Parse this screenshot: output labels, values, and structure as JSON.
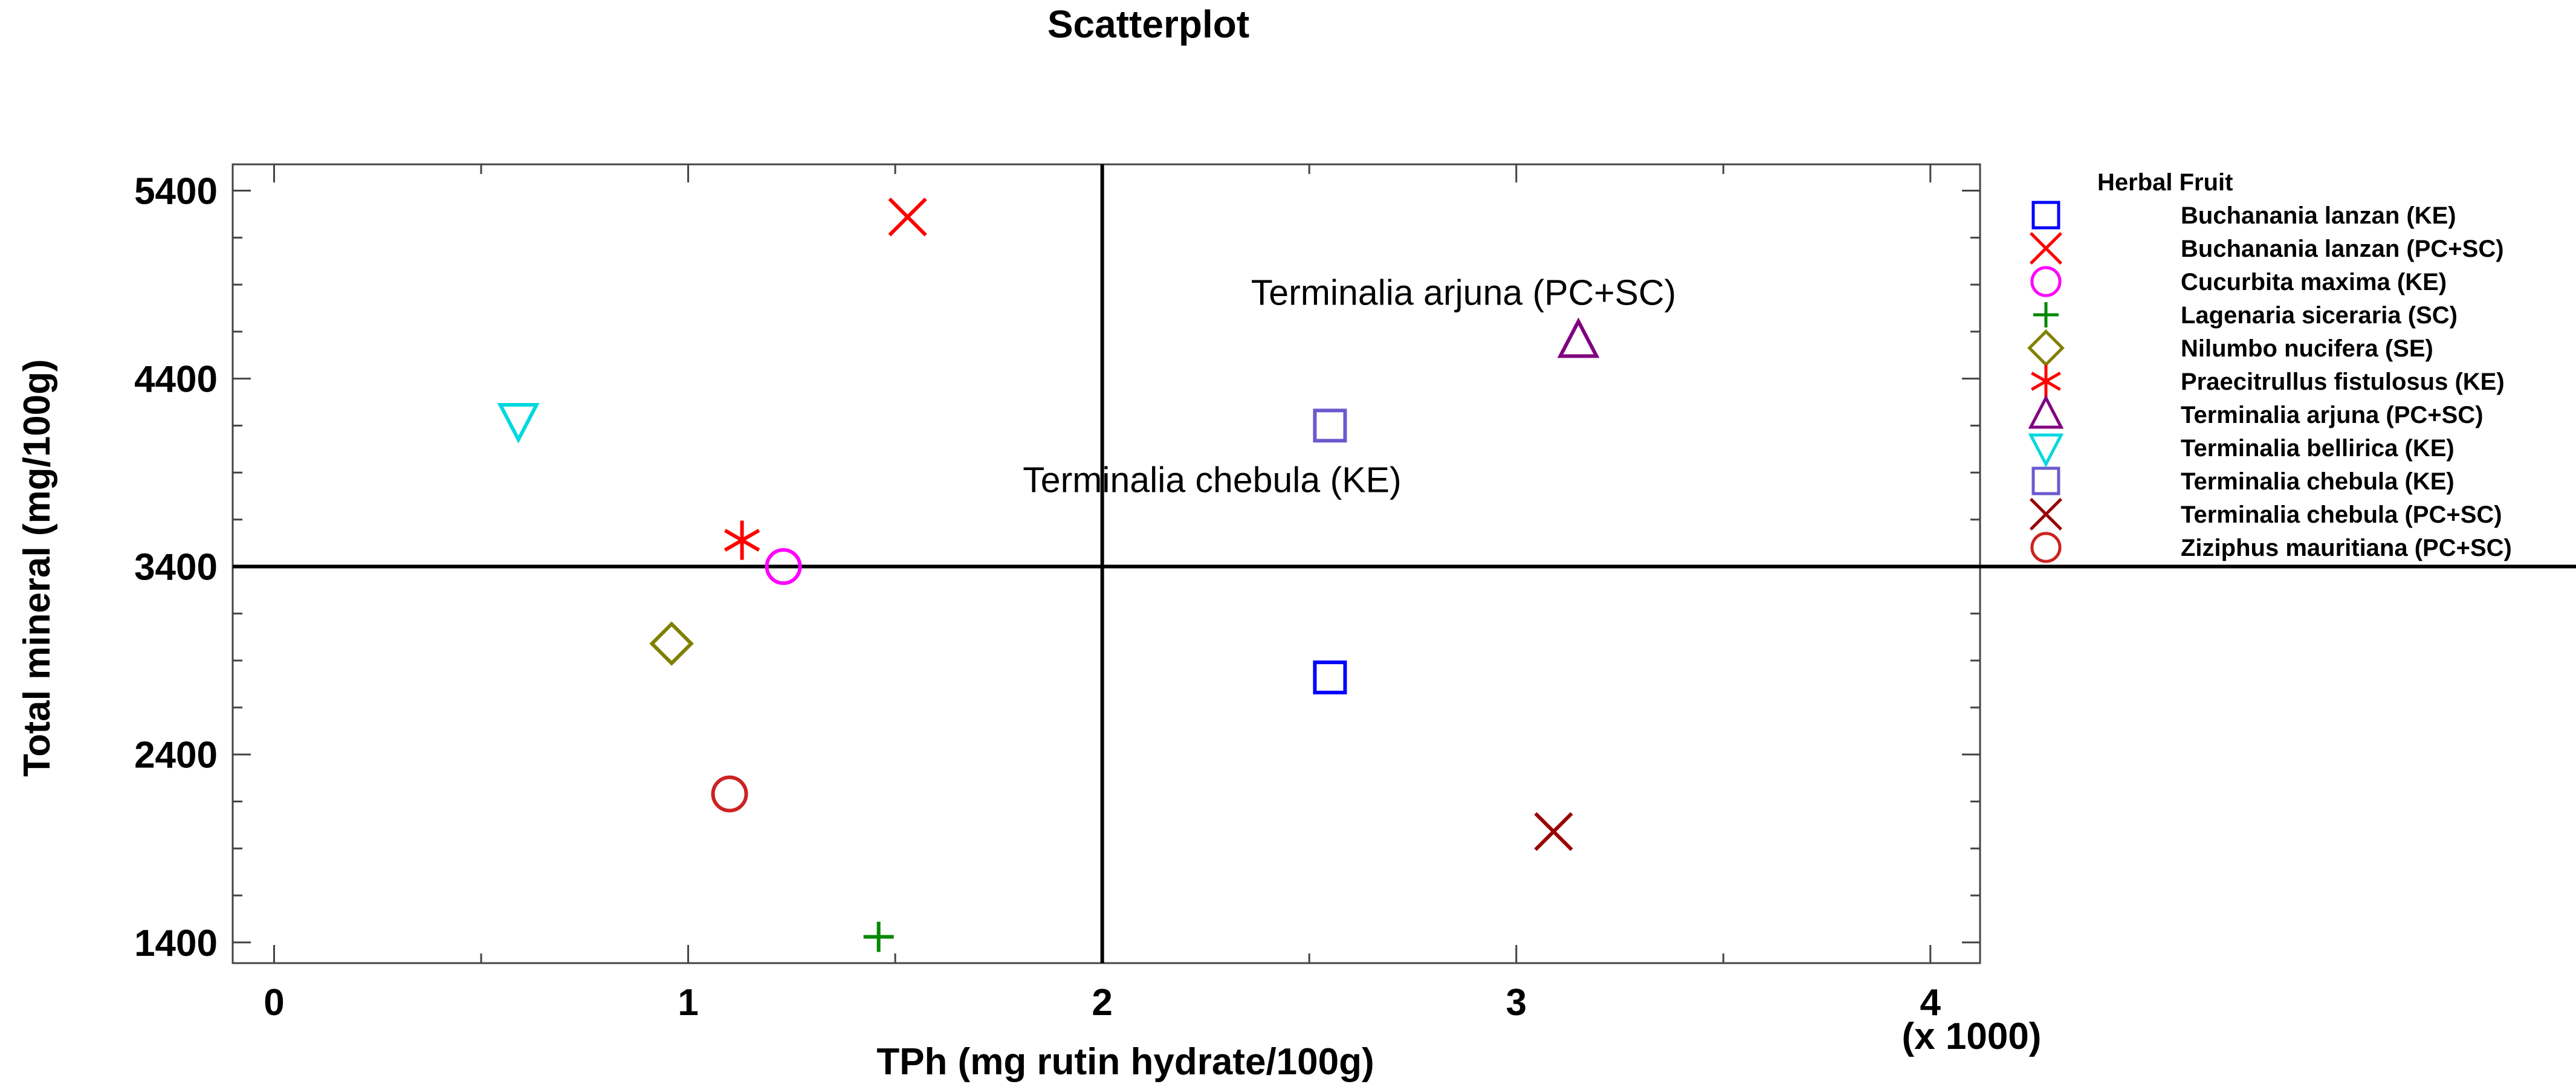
{
  "chart_data": {
    "type": "scatter",
    "title": "Scatterplot",
    "xlabel": "TPh (mg rutin hydrate/100g)",
    "ylabel": "Total mineral (mg/100g)",
    "x_multiplier_label": "(x 1000)",
    "xlim": [
      -0.1,
      4.12
    ],
    "ylim": [
      1290,
      5540
    ],
    "x_ticks": [
      0,
      1,
      2,
      3,
      4
    ],
    "x_tick_labels": [
      "0",
      "1",
      "2",
      "3",
      "4"
    ],
    "y_ticks": [
      1400,
      2400,
      3400,
      4400,
      5400
    ],
    "y_tick_labels": [
      "1400",
      "2400",
      "3400",
      "4400",
      "5400"
    ],
    "reference_lines": {
      "x": 2,
      "y": 3400
    },
    "legend": {
      "title": "Herbal Fruit",
      "placement": "right"
    },
    "series": [
      {
        "name": "Buchanania lanzan (KE)",
        "marker": "square",
        "color": "#0000ff",
        "points": [
          [
            2.55,
            2810
          ]
        ]
      },
      {
        "name": "Buchanania lanzan (PC+SC)",
        "marker": "x",
        "color": "#ff0000",
        "points": [
          [
            1.53,
            5260
          ]
        ]
      },
      {
        "name": "Cucurbita maxima (KE)",
        "marker": "circle",
        "color": "#ff00ff",
        "points": [
          [
            1.23,
            3400
          ]
        ]
      },
      {
        "name": "Lagenaria siceraria (SC)",
        "marker": "plus",
        "color": "#008800",
        "points": [
          [
            1.46,
            1430
          ]
        ]
      },
      {
        "name": "Nilumbo nucifera (SE)",
        "marker": "diamond",
        "color": "#808000",
        "points": [
          [
            0.96,
            2990
          ]
        ]
      },
      {
        "name": "Praecitrullus fistulosus (KE)",
        "marker": "asterisk",
        "color": "#ff0000",
        "points": [
          [
            1.13,
            3540
          ]
        ]
      },
      {
        "name": "Terminalia arjuna (PC+SC)",
        "marker": "triangle-up",
        "color": "#800080",
        "points": [
          [
            3.15,
            4600
          ]
        ]
      },
      {
        "name": "Terminalia bellirica (KE)",
        "marker": "triangle-down",
        "color": "#00d8e0",
        "points": [
          [
            0.59,
            4180
          ]
        ]
      },
      {
        "name": "Terminalia chebula (KE)",
        "marker": "square",
        "color": "#6a5acd",
        "points": [
          [
            2.55,
            4150
          ]
        ]
      },
      {
        "name": "Terminalia chebula (PC+SC)",
        "marker": "x",
        "color": "#990000",
        "points": [
          [
            3.09,
            1990
          ]
        ]
      },
      {
        "name": "Ziziphus mauritiana (PC+SC)",
        "marker": "circle",
        "color": "#cc2222",
        "points": [
          [
            1.1,
            2190
          ]
        ]
      }
    ],
    "annotations": [
      {
        "text": "Terminalia arjuna (PC+SC)",
        "x": 3.15,
        "y": 4600
      },
      {
        "text": "Terminalia chebula (KE)",
        "x": 2.55,
        "y": 4150
      }
    ]
  }
}
